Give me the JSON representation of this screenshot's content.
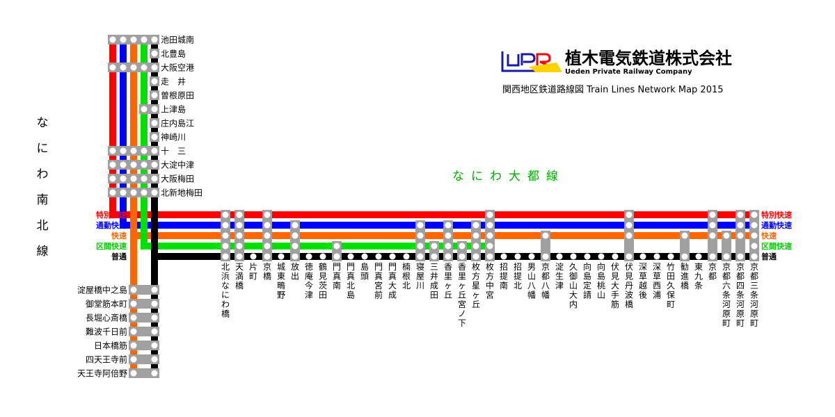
{
  "company": {
    "name_jp": "植木電気鉄道株式会社",
    "name_en": "Ueden Private Railway Company",
    "map_title": "関西地区鉄道路線図  Train Lines Network Map 2015"
  },
  "lines": {
    "naniwa_nanboku": "なにわ南北線",
    "naniwa_daito": "なにわ大都線"
  },
  "colors": {
    "tokubetsu_kaisoku": "#ff0000",
    "tsukin_kaisoku": "#0000ff",
    "kaisoku": "#ff6600",
    "kukan_kaisoku": "#00e000",
    "futsu": "#000000",
    "daito_line_text": "#00aa00",
    "stop_box": "#a0a0a0"
  },
  "services": [
    {
      "key": "tokubetsu",
      "label": "特別快速",
      "color": "#ff0000"
    },
    {
      "key": "tsukin",
      "label": "通勤快速",
      "color": "#0000ff"
    },
    {
      "key": "kaisoku",
      "label": "快速",
      "color": "#ff6600"
    },
    {
      "key": "kukan",
      "label": "区間快速",
      "color": "#00cc00"
    },
    {
      "key": "futsu",
      "label": "普通",
      "color": "#000000"
    }
  ],
  "north_stations": [
    {
      "name": "池田城南",
      "stops": [
        "tokubetsu",
        "tsukin",
        "kaisoku",
        "kukan",
        "futsu"
      ]
    },
    {
      "name": "北豊島",
      "stops": [
        "futsu"
      ]
    },
    {
      "name": "大阪空港",
      "stops": [
        "tokubetsu",
        "tsukin",
        "kaisoku",
        "kukan",
        "futsu"
      ]
    },
    {
      "name": "走　井",
      "stops": [
        "futsu"
      ]
    },
    {
      "name": "曽根原田",
      "stops": [
        "futsu"
      ]
    },
    {
      "name": "上津島",
      "stops": [
        "kukan",
        "futsu"
      ]
    },
    {
      "name": "庄内島江",
      "stops": [
        "futsu"
      ]
    },
    {
      "name": "神崎川",
      "stops": [
        "futsu"
      ]
    },
    {
      "name": "十　三",
      "stops": [
        "tokubetsu",
        "tsukin",
        "kaisoku",
        "kukan",
        "futsu"
      ]
    },
    {
      "name": "大淀中津",
      "stops": [
        "tokubetsu",
        "tsukin",
        "kaisoku",
        "kukan",
        "futsu"
      ]
    },
    {
      "name": "大阪梅田",
      "stops": [
        "tokubetsu",
        "tsukin",
        "kaisoku",
        "kukan",
        "futsu"
      ]
    },
    {
      "name": "北新地梅田",
      "stops": [
        "tokubetsu",
        "tsukin",
        "kaisoku",
        "kukan",
        "futsu"
      ]
    }
  ],
  "south_stations": [
    {
      "name": "淀屋橋中之島",
      "stops": [
        "kaisoku",
        "futsu"
      ]
    },
    {
      "name": "御堂筋本町",
      "stops": [
        "kaisoku",
        "futsu"
      ]
    },
    {
      "name": "長堀心斎橋",
      "stops": [
        "kaisoku",
        "futsu"
      ]
    },
    {
      "name": "難波千日前",
      "stops": [
        "kaisoku",
        "futsu"
      ]
    },
    {
      "name": "日本橋筋",
      "stops": [
        "kaisoku",
        "futsu"
      ]
    },
    {
      "name": "四天王寺前",
      "stops": [
        "kaisoku",
        "futsu"
      ]
    },
    {
      "name": "天王寺阿倍野",
      "stops": [
        "kaisoku",
        "futsu"
      ]
    }
  ],
  "east_stations": [
    {
      "name": "北浜なにわ橋",
      "stops": [
        "tokubetsu",
        "tsukin",
        "kaisoku",
        "kukan",
        "futsu"
      ]
    },
    {
      "name": "天満橋",
      "stops": [
        "tokubetsu",
        "tsukin",
        "kaisoku",
        "kukan",
        "futsu"
      ]
    },
    {
      "name": "片町",
      "stops": [
        "futsu"
      ]
    },
    {
      "name": "京橋",
      "stops": [
        "tokubetsu",
        "tsukin",
        "kaisoku",
        "kukan",
        "futsu"
      ]
    },
    {
      "name": "城東鴫野",
      "stops": [
        "futsu"
      ]
    },
    {
      "name": "放出",
      "stops": [
        "tsukin",
        "kaisoku",
        "kukan",
        "futsu"
      ]
    },
    {
      "name": "徳庵今津",
      "stops": [
        "futsu"
      ]
    },
    {
      "name": "鶴見茨田",
      "stops": [
        "futsu"
      ]
    },
    {
      "name": "門真南",
      "stops": [
        "kukan",
        "futsu"
      ]
    },
    {
      "name": "門真北島",
      "stops": [
        "futsu"
      ]
    },
    {
      "name": "島頭",
      "stops": [
        "futsu"
      ]
    },
    {
      "name": "門真宮前",
      "stops": [
        "futsu"
      ]
    },
    {
      "name": "門真大成",
      "stops": [
        "futsu"
      ]
    },
    {
      "name": "楠根北",
      "stops": [
        "futsu"
      ]
    },
    {
      "name": "寝屋川",
      "stops": [
        "tsukin",
        "kaisoku",
        "kukan",
        "futsu"
      ]
    },
    {
      "name": "三井成田",
      "stops": [
        "kukan",
        "futsu"
      ]
    },
    {
      "name": "香里ヶ丘",
      "stops": [
        "tsukin",
        "kaisoku",
        "kukan",
        "futsu"
      ]
    },
    {
      "name": "香里ヶ丘宮ノ下",
      "stops": [
        "kukan",
        "futsu"
      ]
    },
    {
      "name": "枚方星ヶ丘",
      "stops": [
        "tsukin",
        "kaisoku",
        "kukan",
        "futsu"
      ]
    },
    {
      "name": "枚方中宮",
      "stops": [
        "tokubetsu",
        "tsukin",
        "kaisoku",
        "kukan",
        "futsu"
      ]
    },
    {
      "name": "招提南",
      "stops": [
        "futsu"
      ]
    },
    {
      "name": "招提北",
      "stops": [
        "futsu"
      ]
    },
    {
      "name": "男山八幡",
      "stops": [
        "futsu"
      ]
    },
    {
      "name": "京都八幡",
      "stops": [
        "kaisoku",
        "futsu"
      ]
    },
    {
      "name": "淀生津",
      "stops": [
        "futsu"
      ]
    },
    {
      "name": "久御山大内",
      "stops": [
        "futsu"
      ]
    },
    {
      "name": "向島定請",
      "stops": [
        "futsu"
      ]
    },
    {
      "name": "向島桃山",
      "stops": [
        "futsu"
      ]
    },
    {
      "name": "伏見大手筋",
      "stops": [
        "futsu"
      ]
    },
    {
      "name": "伏見丹波橋",
      "stops": [
        "tokubetsu",
        "tsukin",
        "kaisoku",
        "futsu"
      ]
    },
    {
      "name": "深草越後",
      "stops": [
        "futsu"
      ]
    },
    {
      "name": "深草西浦",
      "stops": [
        "futsu"
      ]
    },
    {
      "name": "竹田久保町",
      "stops": [
        "futsu"
      ]
    },
    {
      "name": "勧進橋",
      "stops": [
        "kaisoku",
        "futsu"
      ]
    },
    {
      "name": "東九条",
      "stops": [
        "futsu"
      ]
    },
    {
      "name": "京都",
      "stops": [
        "tokubetsu",
        "tsukin",
        "kaisoku",
        "futsu"
      ]
    },
    {
      "name": "京都六条河原町",
      "stops": [
        "kaisoku",
        "futsu"
      ]
    },
    {
      "name": "京都四条河原町",
      "stops": [
        "tokubetsu",
        "tsukin",
        "kaisoku",
        "futsu"
      ]
    },
    {
      "name": "京都三条河原町",
      "stops": [
        "tokubetsu",
        "tsukin",
        "kaisoku",
        "kukan",
        "futsu"
      ]
    }
  ]
}
